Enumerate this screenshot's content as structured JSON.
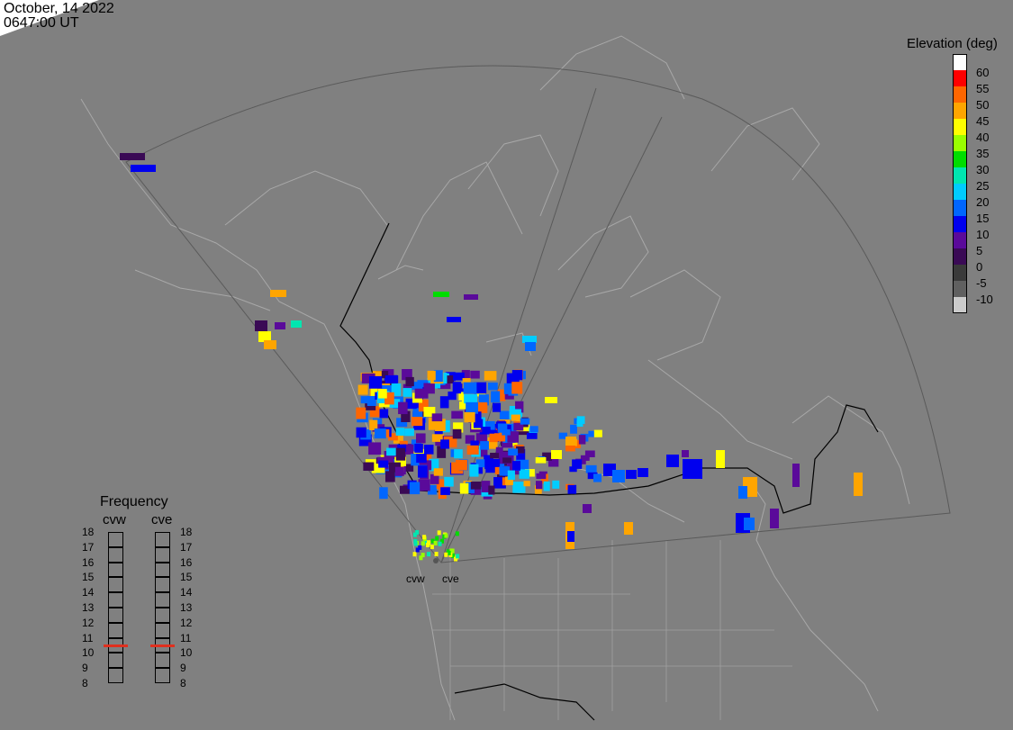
{
  "header": {
    "date": "October, 14 2022",
    "time": "0647:00 UT"
  },
  "legend": {
    "title": "Elevation (deg)",
    "levels": [
      {
        "label": "60",
        "color": "#ffffff"
      },
      {
        "label": "55",
        "color": "#ff0000"
      },
      {
        "label": "50",
        "color": "#ff6600"
      },
      {
        "label": "45",
        "color": "#ffa500"
      },
      {
        "label": "40",
        "color": "#ffff00"
      },
      {
        "label": "35",
        "color": "#99ff00"
      },
      {
        "label": "30",
        "color": "#00dd00"
      },
      {
        "label": "25",
        "color": "#00e6b0"
      },
      {
        "label": "20",
        "color": "#00ccff"
      },
      {
        "label": "15",
        "color": "#0066ff"
      },
      {
        "label": "10",
        "color": "#0000ee"
      },
      {
        "label": "5",
        "color": "#5a0a9a"
      },
      {
        "label": "0",
        "color": "#3a0a55"
      },
      {
        "label": "-5",
        "color": "#3a3a3a"
      },
      {
        "label": "-10",
        "color": "#606060"
      },
      {
        "label": "",
        "color": "#cccccc"
      }
    ]
  },
  "frequency": {
    "title": "Frequency",
    "radars": [
      "cvw",
      "cve"
    ],
    "scale": [
      "18",
      "17",
      "16",
      "15",
      "14",
      "13",
      "12",
      "11",
      "10",
      "9",
      "8"
    ],
    "values": [
      10.5,
      10.5
    ],
    "marker_color": "#e0301e"
  },
  "radar_labels": [
    "cvw",
    "cve"
  ],
  "colors": {
    "background": "#808080",
    "boundaries": "#a8a8a8",
    "national_border": "#000000",
    "fov": "#5a5a5a"
  }
}
